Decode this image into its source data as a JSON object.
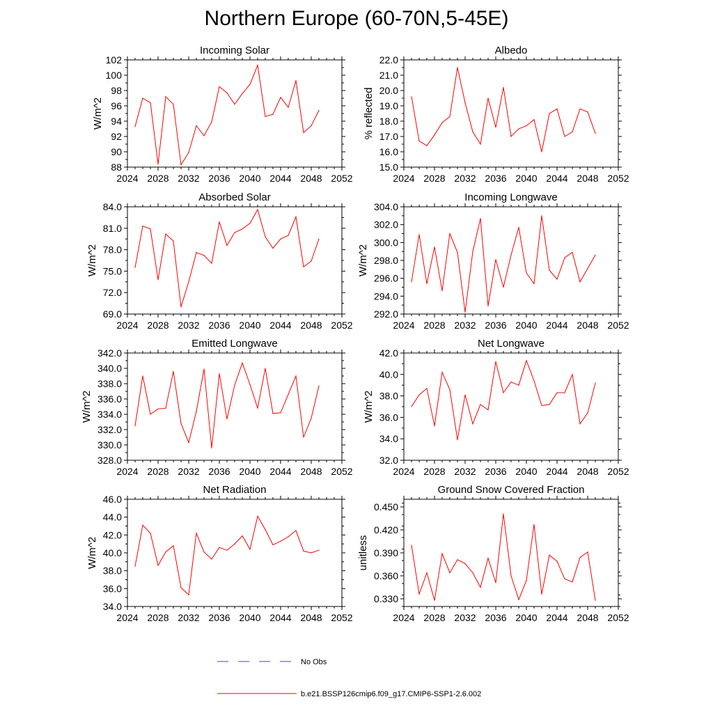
{
  "title": "Northern Europe (60-70N,5-45E)",
  "chart_data": [
    {
      "type": "line",
      "title": "Incoming Solar",
      "xlabel": "",
      "ylabel": "W/m^2",
      "xlim": [
        2024,
        2052
      ],
      "ylim": [
        88,
        102
      ],
      "x_ticks": [
        2024,
        2028,
        2032,
        2036,
        2040,
        2044,
        2048,
        2052
      ],
      "y_ticks": [
        "88",
        "90",
        "92",
        "94",
        "96",
        "98",
        "100",
        "102"
      ],
      "series": [
        {
          "name": "b.e21.BSSP126cmip6.f09_g17.CMIP6-SSP1-2.6.002",
          "color": "#ff0000",
          "x": [
            2025,
            2026,
            2027,
            2028,
            2029,
            2030,
            2031,
            2032,
            2033,
            2034,
            2035,
            2036,
            2037,
            2038,
            2039,
            2040,
            2041,
            2042,
            2043,
            2044,
            2045,
            2046,
            2047,
            2048,
            2049
          ],
          "y": [
            93.3,
            97.0,
            96.4,
            88.4,
            97.2,
            96.2,
            88.3,
            89.9,
            93.4,
            92.1,
            93.9,
            98.5,
            97.7,
            96.2,
            97.6,
            98.8,
            101.3,
            94.6,
            94.9,
            97.1,
            95.8,
            99.3,
            92.5,
            93.4,
            95.4
          ]
        }
      ]
    },
    {
      "type": "line",
      "title": "Albedo",
      "xlabel": "",
      "ylabel": "% reflected",
      "xlim": [
        2024,
        2052
      ],
      "ylim": [
        15.0,
        22.0
      ],
      "x_ticks": [
        2024,
        2028,
        2032,
        2036,
        2040,
        2044,
        2048,
        2052
      ],
      "y_ticks": [
        "15.0",
        "16.0",
        "17.0",
        "18.0",
        "19.0",
        "20.0",
        "21.0",
        "22.0"
      ],
      "series": [
        {
          "name": "b.e21.BSSP126cmip6.f09_g17.CMIP6-SSP1-2.6.002",
          "color": "#ff0000",
          "x": [
            2025,
            2026,
            2027,
            2028,
            2029,
            2030,
            2031,
            2032,
            2033,
            2034,
            2035,
            2036,
            2037,
            2038,
            2039,
            2040,
            2041,
            2042,
            2043,
            2044,
            2045,
            2046,
            2047,
            2048,
            2049
          ],
          "y": [
            19.6,
            16.7,
            16.4,
            17.1,
            17.9,
            18.3,
            21.5,
            19.2,
            17.3,
            16.5,
            19.5,
            17.6,
            20.2,
            17.0,
            17.5,
            17.7,
            18.1,
            16.0,
            18.5,
            18.8,
            17.0,
            17.3,
            18.8,
            18.6,
            17.2
          ]
        }
      ]
    },
    {
      "type": "line",
      "title": "Absorbed Solar",
      "xlabel": "",
      "ylabel": "W/m^2",
      "xlim": [
        2024,
        2052
      ],
      "ylim": [
        69.0,
        84.0
      ],
      "x_ticks": [
        2024,
        2028,
        2032,
        2036,
        2040,
        2044,
        2048,
        2052
      ],
      "y_ticks": [
        "69.0",
        "72.0",
        "75.0",
        "78.0",
        "81.0",
        "84.0"
      ],
      "series": [
        {
          "name": "b.e21.BSSP126cmip6.f09_g17.CMIP6-SSP1-2.6.002",
          "color": "#ff0000",
          "x": [
            2025,
            2026,
            2027,
            2028,
            2029,
            2030,
            2031,
            2032,
            2033,
            2034,
            2035,
            2036,
            2037,
            2038,
            2039,
            2040,
            2041,
            2042,
            2043,
            2044,
            2045,
            2046,
            2047,
            2048,
            2049
          ],
          "y": [
            75.5,
            81.3,
            80.9,
            73.8,
            80.2,
            79.2,
            70.0,
            73.5,
            77.6,
            77.2,
            76.1,
            81.9,
            78.6,
            80.4,
            80.9,
            81.7,
            83.6,
            79.8,
            78.2,
            79.5,
            80.0,
            82.6,
            75.6,
            76.4,
            79.5
          ]
        }
      ]
    },
    {
      "type": "line",
      "title": "Incoming Longwave",
      "xlabel": "",
      "ylabel": "W/m^2",
      "xlim": [
        2024,
        2052
      ],
      "ylim": [
        292.0,
        304.0
      ],
      "x_ticks": [
        2024,
        2028,
        2032,
        2036,
        2040,
        2044,
        2048,
        2052
      ],
      "y_ticks": [
        "292.0",
        "294.0",
        "296.0",
        "298.0",
        "300.0",
        "302.0",
        "304.0"
      ],
      "series": [
        {
          "name": "b.e21.BSSP126cmip6.f09_g17.CMIP6-SSP1-2.6.002",
          "color": "#ff0000",
          "x": [
            2025,
            2026,
            2027,
            2028,
            2029,
            2030,
            2031,
            2032,
            2033,
            2034,
            2035,
            2036,
            2037,
            2038,
            2039,
            2040,
            2041,
            2042,
            2043,
            2044,
            2045,
            2046,
            2047,
            2048,
            2049
          ],
          "y": [
            295.6,
            300.9,
            295.4,
            299.5,
            294.6,
            301.0,
            298.9,
            292.2,
            299.0,
            302.7,
            292.9,
            298.1,
            295.0,
            298.6,
            301.7,
            296.6,
            295.4,
            303.0,
            296.9,
            295.9,
            298.3,
            298.9,
            295.6,
            297.1,
            298.6
          ]
        }
      ]
    },
    {
      "type": "line",
      "title": "Emitted Longwave",
      "xlabel": "",
      "ylabel": "W/m^2",
      "xlim": [
        2024,
        2052
      ],
      "ylim": [
        328.0,
        342.0
      ],
      "x_ticks": [
        2024,
        2028,
        2032,
        2036,
        2040,
        2044,
        2048,
        2052
      ],
      "y_ticks": [
        "328.0",
        "330.0",
        "332.0",
        "334.0",
        "336.0",
        "338.0",
        "340.0",
        "342.0"
      ],
      "series": [
        {
          "name": "b.e21.BSSP126cmip6.f09_g17.CMIP6-SSP1-2.6.002",
          "color": "#ff0000",
          "x": [
            2025,
            2026,
            2027,
            2028,
            2029,
            2030,
            2031,
            2032,
            2033,
            2034,
            2035,
            2036,
            2037,
            2038,
            2039,
            2040,
            2041,
            2042,
            2043,
            2044,
            2045,
            2046,
            2047,
            2048,
            2049
          ],
          "y": [
            332.5,
            339.0,
            334.0,
            334.7,
            334.8,
            339.6,
            332.8,
            330.3,
            334.4,
            339.9,
            329.6,
            339.3,
            333.4,
            337.8,
            340.7,
            337.9,
            334.8,
            340.0,
            334.1,
            334.2,
            336.6,
            339.0,
            331.0,
            333.5,
            337.7
          ]
        }
      ]
    },
    {
      "type": "line",
      "title": "Net Longwave",
      "xlabel": "",
      "ylabel": "W/m^2",
      "xlim": [
        2024,
        2052
      ],
      "ylim": [
        32.0,
        42.0
      ],
      "x_ticks": [
        2024,
        2028,
        2032,
        2036,
        2040,
        2044,
        2048,
        2052
      ],
      "y_ticks": [
        "32.0",
        "34.0",
        "36.0",
        "38.0",
        "40.0",
        "42.0"
      ],
      "series": [
        {
          "name": "b.e21.BSSP126cmip6.f09_g17.CMIP6-SSP1-2.6.002",
          "color": "#ff0000",
          "x": [
            2025,
            2026,
            2027,
            2028,
            2029,
            2030,
            2031,
            2032,
            2033,
            2034,
            2035,
            2036,
            2037,
            2038,
            2039,
            2040,
            2041,
            2042,
            2043,
            2044,
            2045,
            2046,
            2047,
            2048,
            2049
          ],
          "y": [
            37.0,
            38.1,
            38.7,
            35.2,
            40.2,
            38.6,
            33.9,
            38.1,
            35.4,
            37.2,
            36.7,
            41.2,
            38.3,
            39.3,
            39.0,
            41.3,
            39.4,
            37.1,
            37.2,
            38.3,
            38.3,
            40.0,
            35.4,
            36.4,
            39.2
          ]
        }
      ]
    },
    {
      "type": "line",
      "title": "Net Radiation",
      "xlabel": "",
      "ylabel": "W/m^2",
      "xlim": [
        2024,
        2052
      ],
      "ylim": [
        34.0,
        46.0
      ],
      "x_ticks": [
        2024,
        2028,
        2032,
        2036,
        2040,
        2044,
        2048,
        2052
      ],
      "y_ticks": [
        "34.0",
        "36.0",
        "38.0",
        "40.0",
        "42.0",
        "44.0",
        "46.0"
      ],
      "series": [
        {
          "name": "b.e21.BSSP126cmip6.f09_g17.CMIP6-SSP1-2.6.002",
          "color": "#ff0000",
          "x": [
            2025,
            2026,
            2027,
            2028,
            2029,
            2030,
            2031,
            2032,
            2033,
            2034,
            2035,
            2036,
            2037,
            2038,
            2039,
            2040,
            2041,
            2042,
            2043,
            2044,
            2045,
            2046,
            2047,
            2048,
            2049
          ],
          "y": [
            38.5,
            43.1,
            42.2,
            38.6,
            40.1,
            40.8,
            36.1,
            35.3,
            42.2,
            40.1,
            39.3,
            40.6,
            40.3,
            41.0,
            41.9,
            40.4,
            44.1,
            42.6,
            40.9,
            41.3,
            41.8,
            42.5,
            40.2,
            40.0,
            40.3
          ]
        }
      ]
    },
    {
      "type": "line",
      "title": "Ground Snow Covered Fraction",
      "xlabel": "",
      "ylabel": "unitless",
      "xlim": [
        2024,
        2052
      ],
      "ylim": [
        0.32,
        0.46
      ],
      "x_ticks": [
        2024,
        2028,
        2032,
        2036,
        2040,
        2044,
        2048,
        2052
      ],
      "y_ticks": [
        "0.330",
        "0.360",
        "0.390",
        "0.420",
        "0.450"
      ],
      "series": [
        {
          "name": "b.e21.BSSP126cmip6.f09_g17.CMIP6-SSP1-2.6.002",
          "color": "#ff0000",
          "x": [
            2025,
            2026,
            2027,
            2028,
            2029,
            2030,
            2031,
            2032,
            2033,
            2034,
            2035,
            2036,
            2037,
            2038,
            2039,
            2040,
            2041,
            2042,
            2043,
            2044,
            2045,
            2046,
            2047,
            2048,
            2049
          ],
          "y": [
            0.4,
            0.336,
            0.364,
            0.328,
            0.389,
            0.364,
            0.381,
            0.376,
            0.364,
            0.345,
            0.383,
            0.351,
            0.441,
            0.36,
            0.329,
            0.354,
            0.427,
            0.336,
            0.387,
            0.379,
            0.356,
            0.352,
            0.384,
            0.391,
            0.328
          ]
        }
      ]
    }
  ],
  "legend": {
    "entries": [
      {
        "label": "No Obs",
        "color": "#4a4aa0",
        "style": "dashed"
      },
      {
        "label": "b.e21.BSSP126cmip6.f09_g17.CMIP6-SSP1-2.6.002",
        "color": "#ff0000",
        "style": "solid"
      }
    ]
  }
}
